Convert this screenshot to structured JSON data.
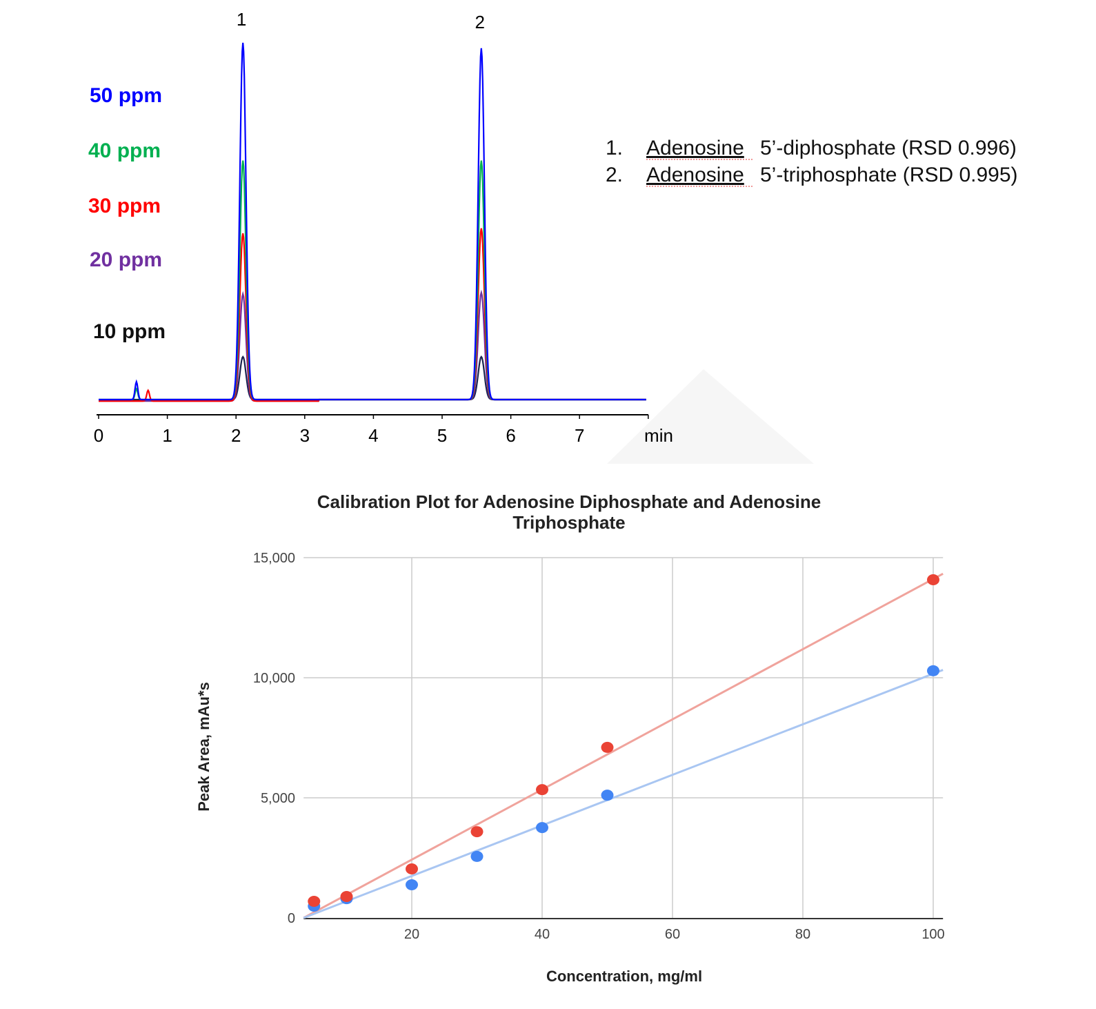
{
  "chart_data": [
    {
      "type": "line",
      "xlabel": "min",
      "x_ticks": [
        "0",
        "1",
        "2",
        "3",
        "4",
        "5",
        "6",
        "7"
      ],
      "xlim": [
        0,
        8
      ],
      "peak_labels": [
        {
          "label": "1",
          "retention_time": 2.1
        },
        {
          "label": "2",
          "retention_time": 5.57
        }
      ],
      "series": [
        {
          "name": "50 ppm",
          "color": "#0000ff",
          "peak_heights_relative": [
            1.0,
            0.985
          ],
          "minor_peak": {
            "time": 0.55,
            "height": 0.05
          }
        },
        {
          "name": "40 ppm",
          "color": "#00b050",
          "peak_heights_relative": [
            0.67,
            0.67
          ],
          "minor_peak": {
            "time": 0.55,
            "height": 0.03
          }
        },
        {
          "name": "30 ppm",
          "color": "#ff0000",
          "peak_heights_relative": [
            0.47,
            0.48
          ],
          "minor_peak": {
            "time": 0.72,
            "height": 0.03
          }
        },
        {
          "name": "20 ppm",
          "color": "#7030a0",
          "peak_heights_relative": [
            0.3,
            0.3
          ]
        },
        {
          "name": "10 ppm",
          "color": "#1a2350",
          "peak_heights_relative": [
            0.12,
            0.12
          ]
        }
      ],
      "legend": [
        {
          "num": "1.",
          "name": "Adenosine",
          "rest": "5’-diphosphate (RSD 0.996)"
        },
        {
          "num": "2.",
          "name": "Adenosine",
          "rest": "5’-triphosphate (RSD 0.995)"
        }
      ]
    },
    {
      "type": "scatter",
      "title_line1": "Calibration Plot for Adenosine Diphosphate and Adenosine",
      "title_line2": "Triphosphate",
      "xlabel": "Concentration, mg/ml",
      "ylabel": "Peak Area, mAu*s",
      "xlim": [
        3.4,
        101.5
      ],
      "ylim": [
        0,
        15000
      ],
      "x_ticks": [
        "20",
        "40",
        "60",
        "80",
        "100"
      ],
      "y_ticks": [
        "0",
        "5,000",
        "10,000",
        "15,000"
      ],
      "grid": true,
      "series": [
        {
          "color": "#ea4335",
          "trend_color": "#f0a39c",
          "trend_slope": 142.2,
          "points": [
            [
              5,
              690
            ],
            [
              10,
              890
            ],
            [
              20,
              2040
            ],
            [
              30,
              3590
            ],
            [
              40,
              5340
            ],
            [
              50,
              7100
            ],
            [
              100,
              14080
            ]
          ]
        },
        {
          "color": "#4285f4",
          "trend_color": "#a9c6f2",
          "trend_slope": 102.9,
          "points": [
            [
              5,
              490
            ],
            [
              10,
              800
            ],
            [
              20,
              1380
            ],
            [
              30,
              2560
            ],
            [
              40,
              3760
            ],
            [
              50,
              5110
            ],
            [
              100,
              10290
            ]
          ]
        }
      ]
    }
  ]
}
